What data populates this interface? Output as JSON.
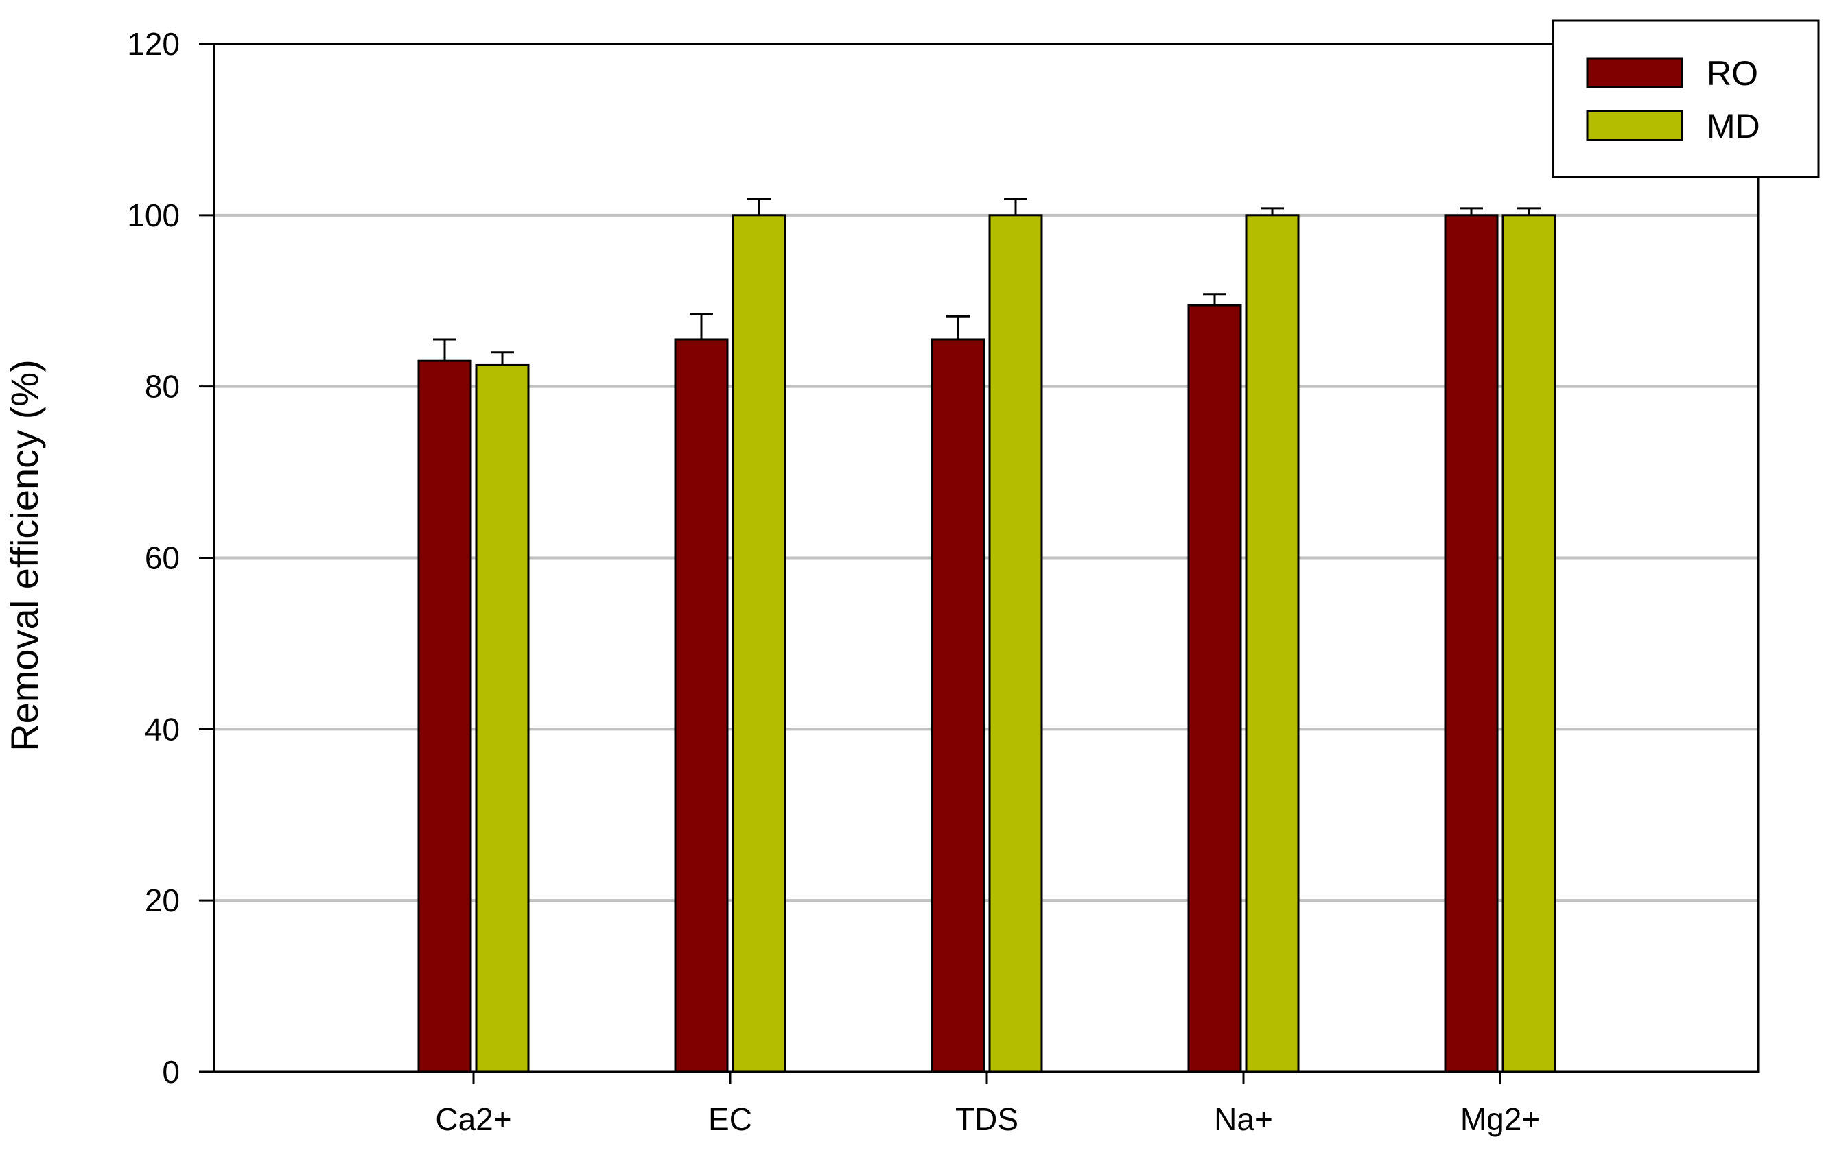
{
  "chart_data": {
    "type": "bar",
    "title": "",
    "xlabel": "",
    "ylabel": "Removal efficiency (%)",
    "ylim": [
      0,
      120
    ],
    "yticks": [
      0,
      20,
      40,
      60,
      80,
      100,
      120
    ],
    "grid": true,
    "legend_position": "top-right",
    "categories": [
      "Ca2+",
      "EC",
      "TDS",
      "Na+",
      "Mg2+"
    ],
    "series": [
      {
        "name": "RO",
        "color": "#800000",
        "values": [
          83,
          85.5,
          85.5,
          89.5,
          100
        ],
        "errors": [
          2.5,
          3,
          2.7,
          1.3,
          0.8
        ]
      },
      {
        "name": "MD",
        "color": "#b5bd00",
        "values": [
          82.5,
          100,
          100,
          100,
          100
        ],
        "errors": [
          1.5,
          1.9,
          1.9,
          0.8,
          0.8
        ]
      }
    ]
  }
}
